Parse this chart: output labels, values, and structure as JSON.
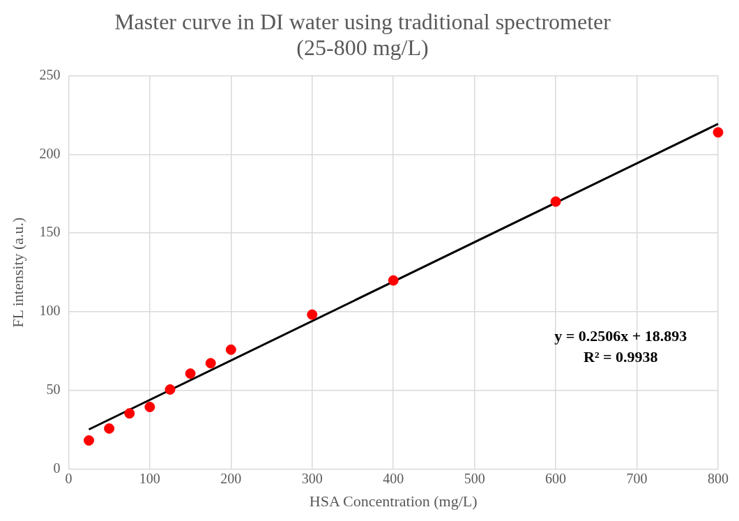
{
  "chart_data": {
    "type": "scatter",
    "title": "Master curve in DI water using traditional spectrometer\n(25-800 mg/L)",
    "xlabel": "HSA Concentration (mg/L)",
    "ylabel": "FL intensity (a.u.)",
    "xlim": [
      0,
      800
    ],
    "xticks": [
      0,
      100,
      200,
      300,
      400,
      500,
      600,
      700,
      800
    ],
    "ylim": [
      0,
      250
    ],
    "yticks": [
      0,
      50,
      100,
      150,
      200,
      250
    ],
    "grid": true,
    "legend": false,
    "marker": "circle",
    "series": [
      {
        "type": "scatter",
        "color": "#ff0000",
        "x": [
          25,
          50,
          75,
          100,
          125,
          150,
          175,
          200,
          300,
          400,
          600,
          800
        ],
        "values": [
          18.2,
          25.8,
          35.4,
          39.5,
          50.6,
          60.7,
          67.3,
          75.9,
          98.2,
          119.9,
          170,
          214
        ]
      },
      {
        "type": "line",
        "color": "#000000",
        "marker": "none",
        "x": [
          25,
          800
        ],
        "values": [
          25.2,
          219.4
        ]
      }
    ],
    "annotations": [
      "y = 0.2506x + 18.893",
      "R² = 0.9938"
    ]
  }
}
